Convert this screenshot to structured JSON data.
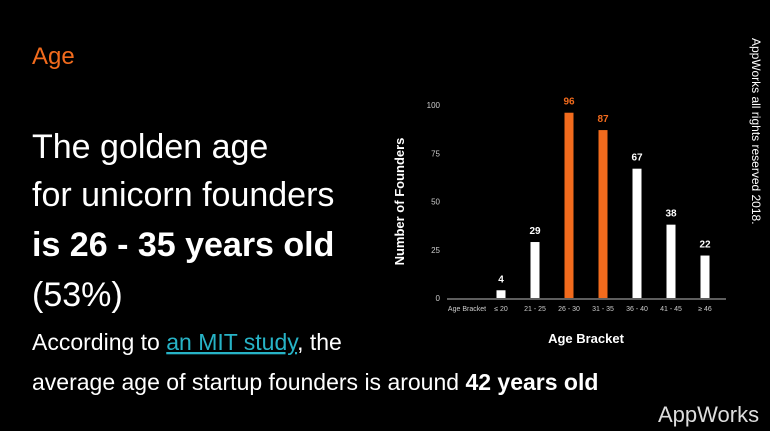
{
  "header": {
    "title": "Age"
  },
  "headline": {
    "line1": "The golden age",
    "line2": "for unicorn founders",
    "line3": "is 26 - 35 years old",
    "line4": "(53%)"
  },
  "body": {
    "prefix": "According to ",
    "link": "an MIT study",
    "suffix": ", the",
    "line2": "average age of startup founders is around ",
    "highlight": "42 years old"
  },
  "copyright": "AppWorks all rights reserved 2018.",
  "logo": "AppWorks",
  "chart_data": {
    "type": "bar",
    "x_label": "Age Bracket",
    "y_label": "Number of Founders",
    "categories": [
      "Age Bracket",
      "≤ 20",
      "21 - 25",
      "26 - 30",
      "31 - 35",
      "36 - 40",
      "41 - 45",
      "≥ 46"
    ],
    "values": [
      null,
      4,
      29,
      96,
      87,
      67,
      38,
      22
    ],
    "colors": [
      null,
      "#ffffff",
      "#ffffff",
      "#f26b1d",
      "#f26b1d",
      "#ffffff",
      "#ffffff",
      "#ffffff"
    ],
    "ylim": [
      0,
      100
    ],
    "yticks": [
      0,
      25,
      50,
      75,
      100
    ]
  }
}
